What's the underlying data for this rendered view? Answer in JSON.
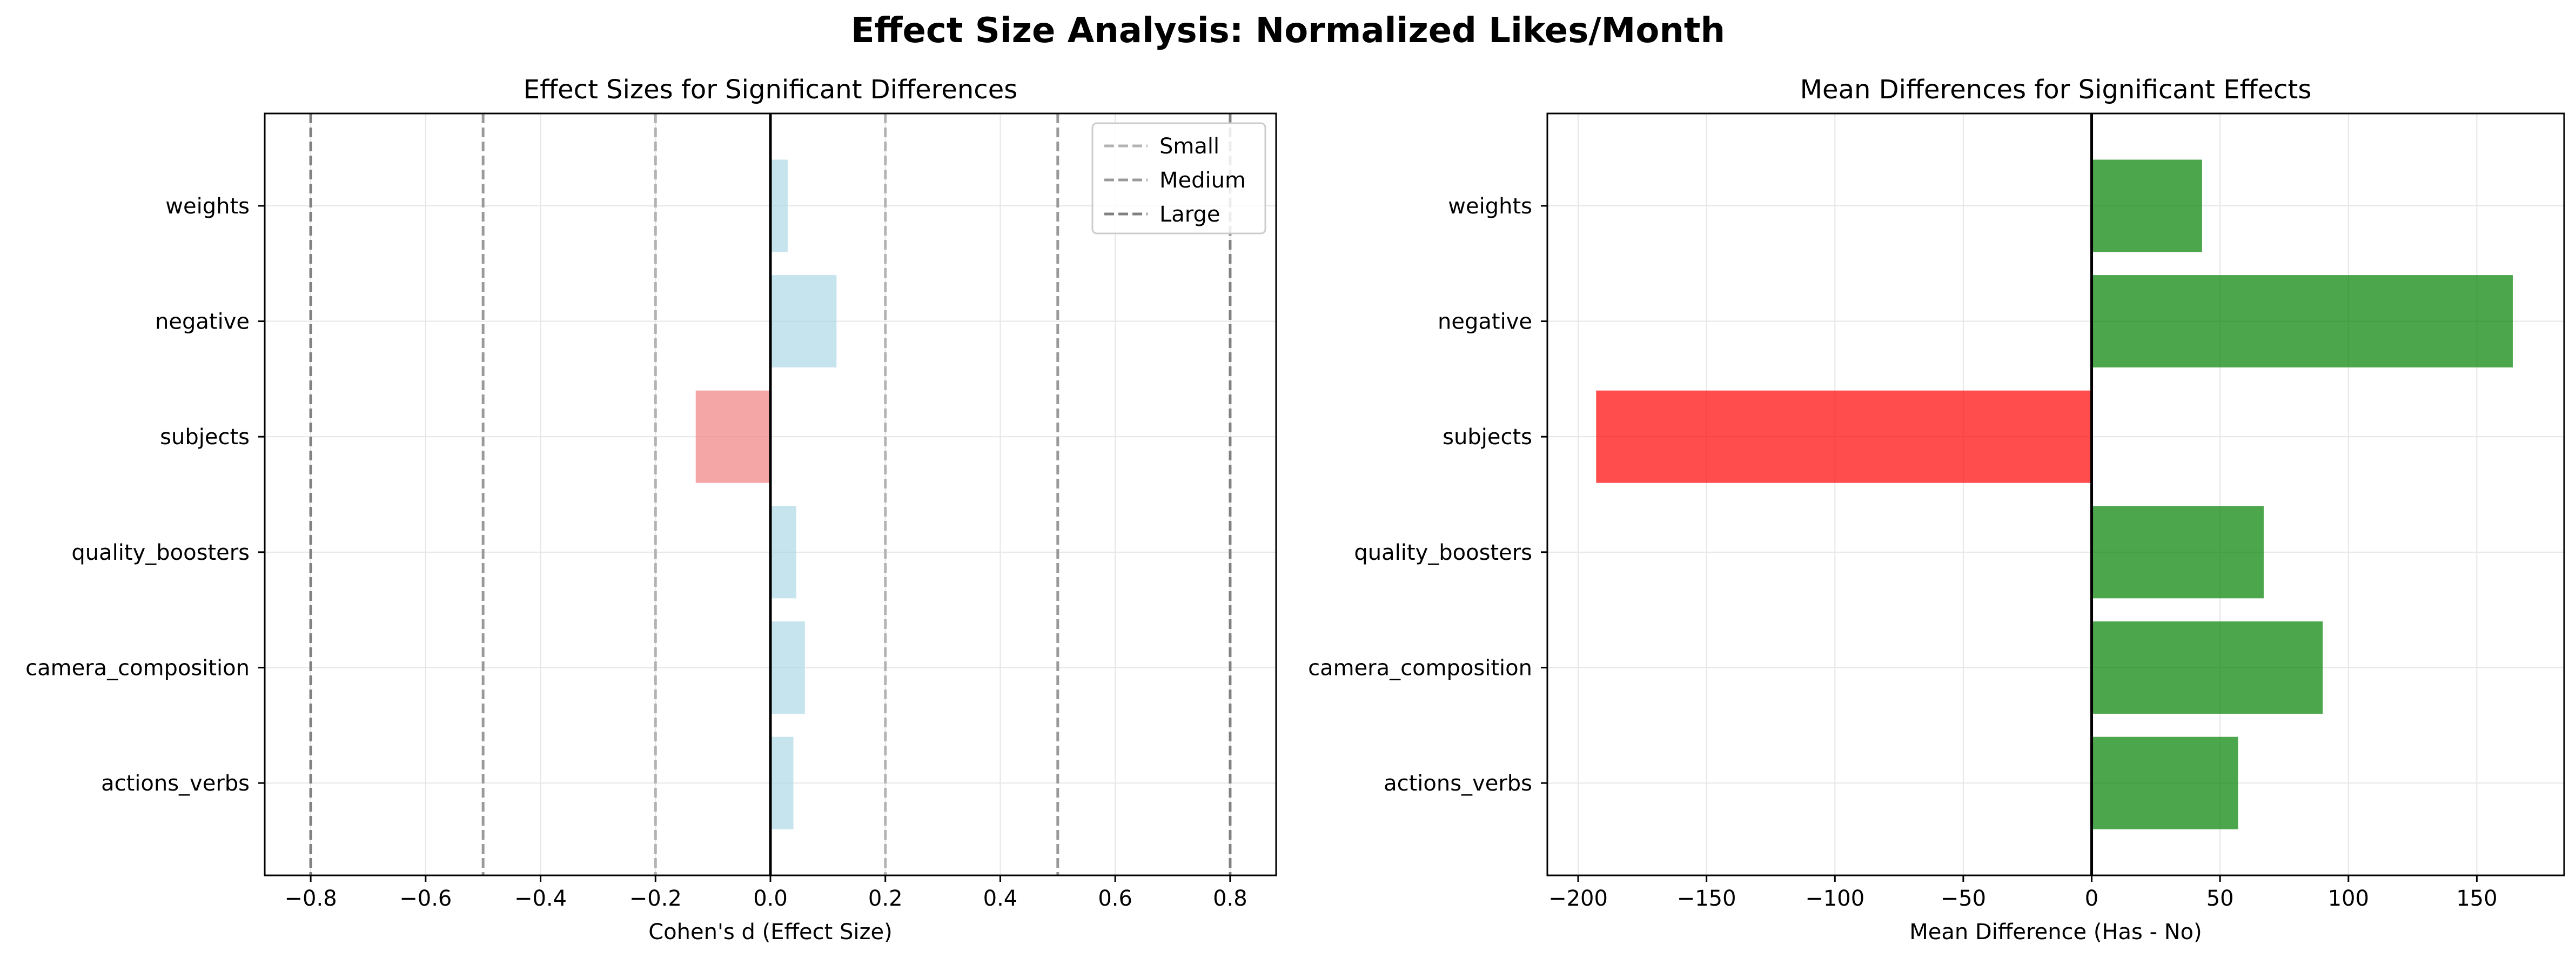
{
  "suptitle": "Effect Size Analysis: Normalized Likes/Month",
  "colors": {
    "positive_effect": "#add8e6",
    "negative_effect": "#f08080",
    "positive_diff": "#008000",
    "negative_diff": "#ff0000",
    "small_line": "#b3b3b3",
    "medium_line": "#999999",
    "large_line": "#808080",
    "grid": "#e6e6e6",
    "zero_line": "#000000"
  },
  "chart_data": [
    {
      "type": "bar",
      "orientation": "horizontal",
      "title": "Effect Sizes for Significant Differences",
      "xlabel": "Cohen's d (Effect Size)",
      "ylabel": "",
      "categories": [
        "actions_verbs",
        "camera_composition",
        "quality_boosters",
        "subjects",
        "negative",
        "weights"
      ],
      "values": [
        0.04,
        0.06,
        0.045,
        -0.13,
        0.115,
        0.03
      ],
      "xlim": [
        -0.88,
        0.88
      ],
      "xticks": [
        -0.8,
        -0.6,
        -0.4,
        -0.2,
        0.0,
        0.2,
        0.4,
        0.6,
        0.8
      ],
      "xtick_labels": [
        "−0.8",
        "−0.6",
        "−0.4",
        "−0.2",
        "0.0",
        "0.2",
        "0.4",
        "0.6",
        "0.8"
      ],
      "grid": true,
      "reference_lines": [
        {
          "name": "Small",
          "values": [
            -0.2,
            0.2
          ],
          "color_key": "small_line"
        },
        {
          "name": "Medium",
          "values": [
            -0.5,
            0.5
          ],
          "color_key": "medium_line"
        },
        {
          "name": "Large",
          "values": [
            -0.8,
            0.8
          ],
          "color_key": "large_line"
        }
      ],
      "legend": {
        "position": "top-right",
        "entries": [
          "Small",
          "Medium",
          "Large"
        ]
      }
    },
    {
      "type": "bar",
      "orientation": "horizontal",
      "title": "Mean Differences for Significant Effects",
      "xlabel": "Mean Difference (Has - No)",
      "ylabel": "",
      "categories": [
        "actions_verbs",
        "camera_composition",
        "quality_boosters",
        "subjects",
        "negative",
        "weights"
      ],
      "values": [
        57,
        90,
        67,
        -193,
        164,
        43
      ],
      "xlim": [
        -212,
        184
      ],
      "xticks": [
        -200,
        -150,
        -100,
        -50,
        0,
        50,
        100,
        150
      ],
      "xtick_labels": [
        "−200",
        "−150",
        "−100",
        "−50",
        "0",
        "50",
        "100",
        "150"
      ],
      "grid": true
    }
  ]
}
